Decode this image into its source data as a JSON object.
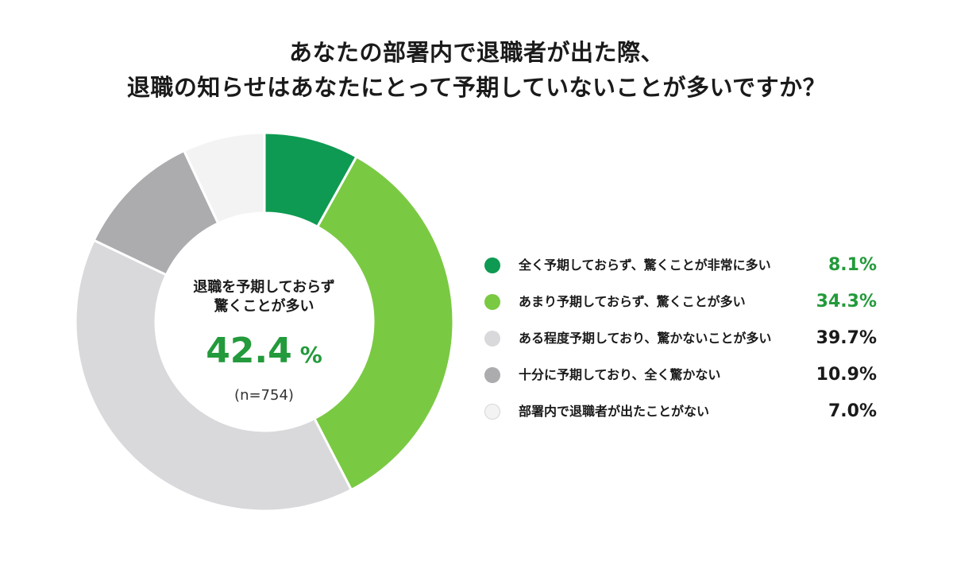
{
  "title": {
    "line1": "あなたの部署内で退職者が出た際、",
    "line2": "退職の知らせはあなたにとって予期していないことが多いですか？"
  },
  "center": {
    "label_line1": "退職を予期しておらず",
    "label_line2": "驚くことが多い",
    "value": "42.4",
    "unit": "%",
    "n": "(n=754)"
  },
  "colors": {
    "accent": "#239a3b",
    "dark_text": "#1a1a1a"
  },
  "chart_data": {
    "type": "pie",
    "categories": [
      "全く予期しておらず、驚くことが非常に多い",
      "あまり予期しておらず、驚くことが多い",
      "ある程度予期しており、驚かないことが多い",
      "十分に予期しており、全く驚かない",
      "部署内で退職者が出たことがない"
    ],
    "values": [
      8.1,
      34.3,
      39.7,
      10.9,
      7.0
    ],
    "value_labels": [
      "8.1%",
      "34.3%",
      "39.7%",
      "10.9%",
      "7.0%"
    ],
    "colors": [
      "#0e9a52",
      "#7ac943",
      "#d9d9dc",
      "#acacaf",
      "#f3f3f4"
    ],
    "label_colors": [
      "#239a3b",
      "#239a3b",
      "#1a1a1a",
      "#1a1a1a",
      "#1a1a1a"
    ],
    "donut": true,
    "legend_position": "right"
  }
}
